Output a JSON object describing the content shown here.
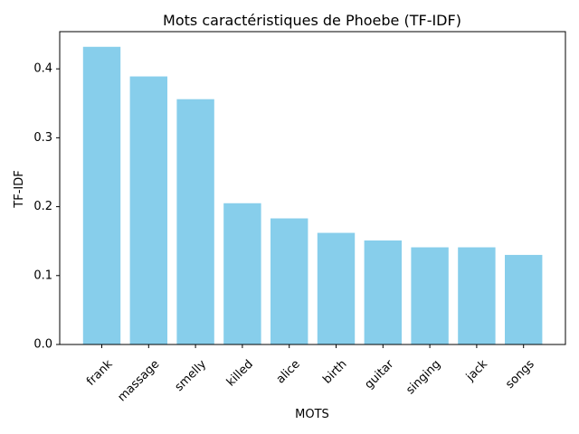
{
  "chart_data": {
    "type": "bar",
    "title": "Mots caractéristiques de Phoebe (TF-IDF)",
    "xlabel": "MOTS",
    "ylabel": "TF-IDF",
    "categories": [
      "frank",
      "massage",
      "smelly",
      "killed",
      "alice",
      "birth",
      "guitar",
      "singing",
      "jack",
      "songs"
    ],
    "values": [
      0.432,
      0.389,
      0.356,
      0.205,
      0.183,
      0.162,
      0.151,
      0.141,
      0.141,
      0.13
    ],
    "yticks": [
      "0.0",
      "0.1",
      "0.2",
      "0.3",
      "0.4"
    ],
    "ylim": [
      0,
      0.454
    ],
    "bar_color": "#87ceeb",
    "grid": false,
    "legend": false
  }
}
